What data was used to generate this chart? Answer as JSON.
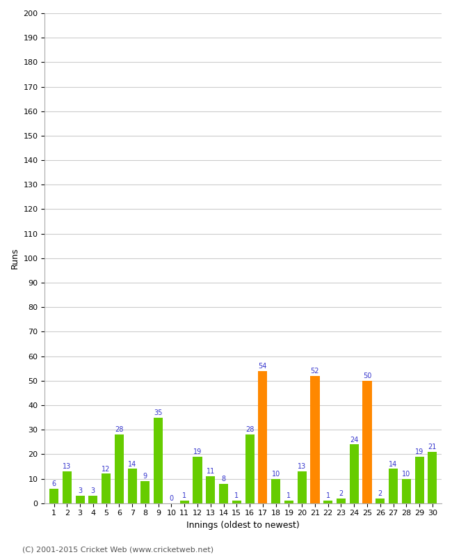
{
  "values": [
    6,
    13,
    3,
    3,
    12,
    28,
    14,
    9,
    35,
    0,
    1,
    19,
    11,
    8,
    1,
    28,
    54,
    10,
    1,
    13,
    52,
    1,
    2,
    24,
    50,
    2,
    14,
    10,
    19,
    21
  ],
  "innings": [
    1,
    2,
    3,
    4,
    5,
    6,
    7,
    8,
    9,
    10,
    11,
    12,
    13,
    14,
    15,
    16,
    17,
    18,
    19,
    20,
    21,
    22,
    23,
    24,
    25,
    26,
    27,
    28,
    29,
    30
  ],
  "orange_threshold": 50,
  "bar_color_green": "#66cc00",
  "bar_color_orange": "#ff8800",
  "label_color": "#3333cc",
  "background_color": "#ffffff",
  "grid_color": "#cccccc",
  "ylabel": "Runs",
  "xlabel": "Innings (oldest to newest)",
  "footer": "(C) 2001-2015 Cricket Web (www.cricketweb.net)",
  "ylim": [
    0,
    200
  ],
  "yticks": [
    0,
    10,
    20,
    30,
    40,
    50,
    60,
    70,
    80,
    90,
    100,
    110,
    120,
    130,
    140,
    150,
    160,
    170,
    180,
    190,
    200
  ],
  "label_fontsize": 7,
  "axis_fontsize": 9,
  "tick_fontsize": 8,
  "footer_fontsize": 8
}
